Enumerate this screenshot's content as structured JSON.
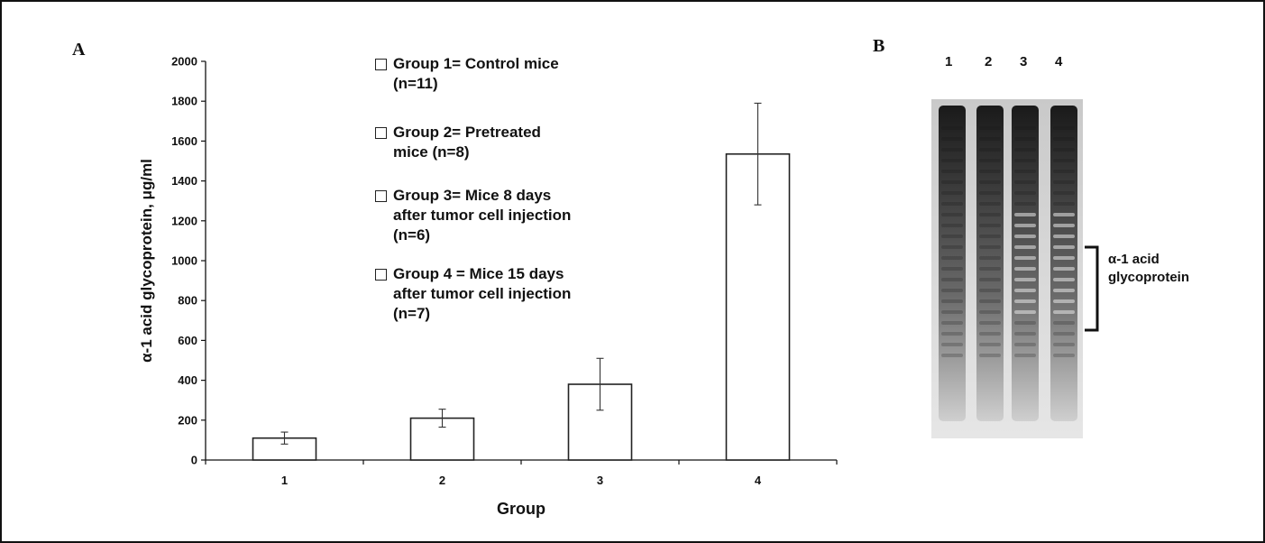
{
  "panels": {
    "a_letter": "A",
    "b_letter": "B"
  },
  "chart_data": {
    "type": "bar",
    "categories": [
      "1",
      "2",
      "3",
      "4"
    ],
    "values": [
      110,
      210,
      380,
      1535
    ],
    "error": [
      30,
      45,
      130,
      255
    ],
    "xlabel": "Group",
    "ylabel": "α-1 acid glycoprotein, μg/ml",
    "ylim": [
      0,
      2000
    ],
    "yticks": [
      0,
      200,
      400,
      600,
      800,
      1000,
      1200,
      1400,
      1600,
      1800,
      2000
    ],
    "legend": [
      "Group 1= Control mice\n(n=11)",
      "Group 2= Pretreated\nmice (n=8)",
      "Group 3= Mice 8 days\nafter tumor cell injection\n(n=6)",
      "Group 4 = Mice 15 days\nafter tumor cell injection\n(n=7)"
    ],
    "bar_fill": "#ffffff",
    "bar_stroke": "#222222"
  },
  "gel": {
    "lanes": [
      "1",
      "2",
      "3",
      "4"
    ],
    "bracket_label": "α-1 acid\nglycoprotein"
  }
}
